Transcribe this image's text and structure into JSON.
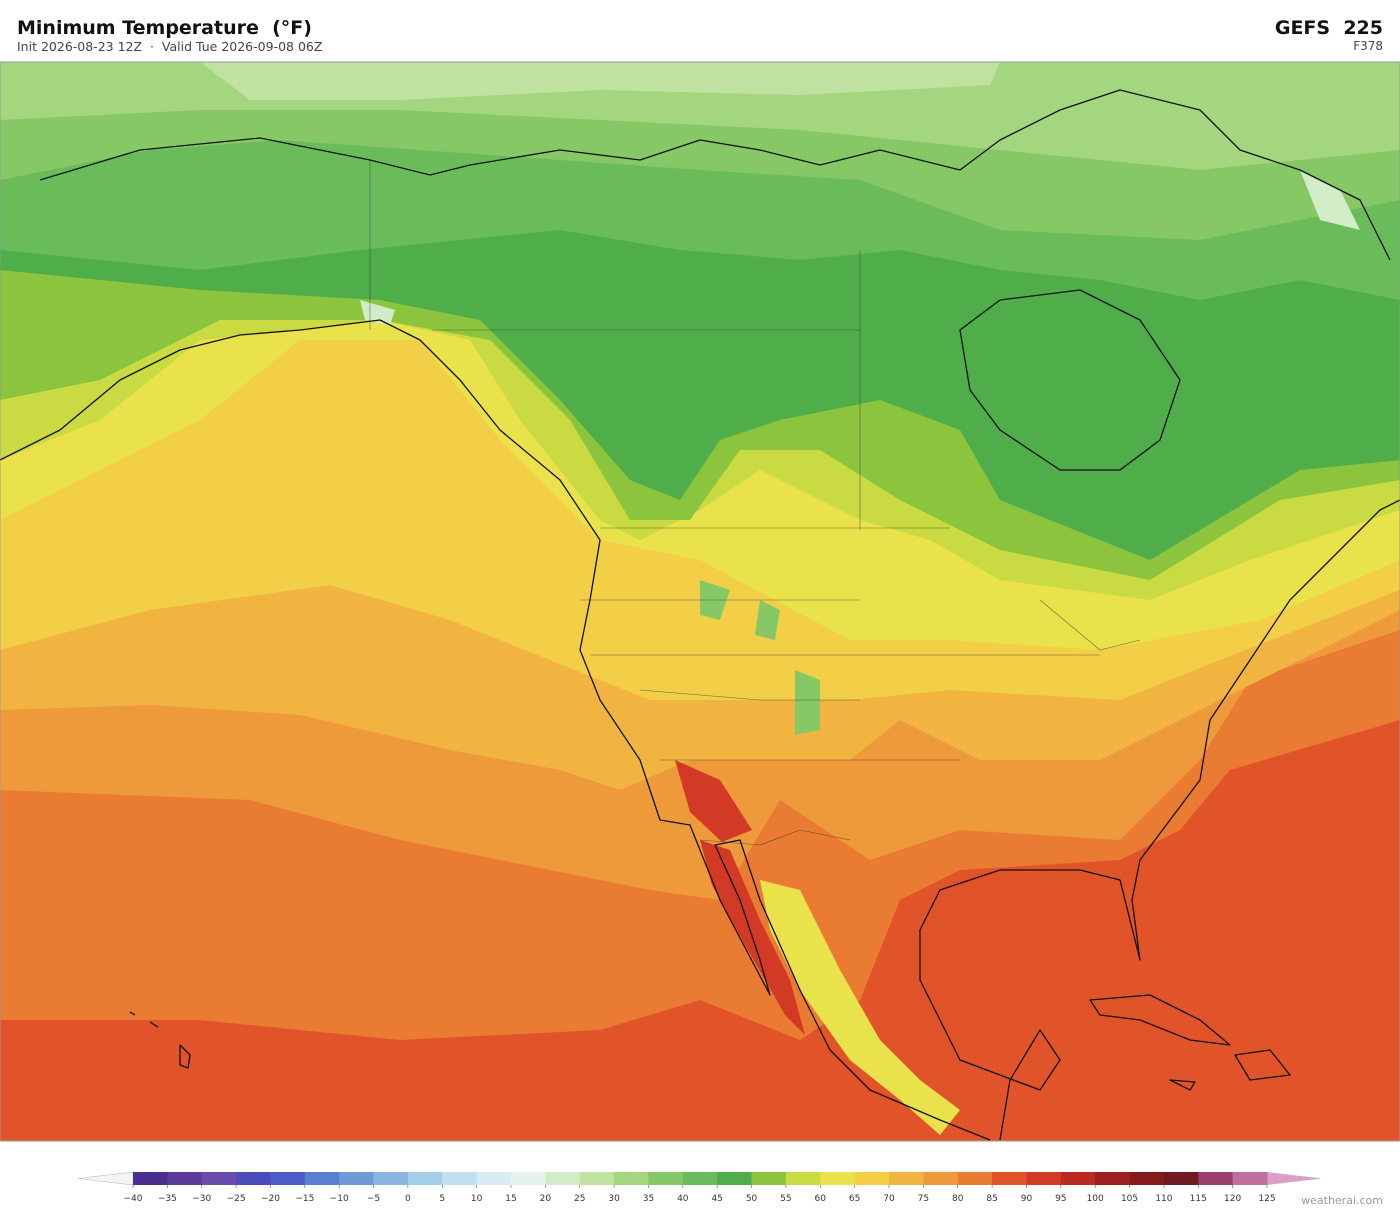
{
  "header": {
    "title": "Minimum Temperature  (°F)",
    "subtitle": "Init 2026-08-23 12Z  ·  Valid Tue 2026-09-08 06Z",
    "model": "GEFS  225",
    "forecast_hour": "F378"
  },
  "colorbar": {
    "ticks": [
      {
        "value": -40,
        "label": "−40"
      },
      {
        "value": -35,
        "label": "−35"
      },
      {
        "value": -30,
        "label": "−30"
      },
      {
        "value": -25,
        "label": "−25"
      },
      {
        "value": -20,
        "label": "−20"
      },
      {
        "value": -15,
        "label": "−15"
      },
      {
        "value": -10,
        "label": "−10"
      },
      {
        "value": -5,
        "label": "−5"
      },
      0,
      5,
      10,
      15,
      20,
      25,
      30,
      35,
      40,
      45,
      50,
      55,
      60,
      65,
      70,
      75,
      80,
      85,
      90,
      95,
      100,
      105,
      110,
      115,
      120,
      125
    ],
    "colors": [
      "#4b2d8f",
      "#5b3a9a",
      "#6a4aaa",
      "#4a4ab8",
      "#4a5cc8",
      "#5a7fd0",
      "#6f9ad8",
      "#8bb5e0",
      "#a6cde8",
      "#c0e0ef",
      "#d8ecf3",
      "#e6f3ec",
      "#d3ecc8",
      "#bfe2a0",
      "#a3d67f",
      "#86c865",
      "#6abc5a",
      "#4fad4a",
      "#8cc43e",
      "#c9da42",
      "#e9e24a",
      "#f3cf48",
      "#f1b441",
      "#ee9a3a",
      "#ea7b32",
      "#e1542a",
      "#d33a26",
      "#b82a22",
      "#9e1f1f",
      "#861a1d",
      "#6e1a20",
      "#9a3f6e",
      "#c06fa0"
    ],
    "under_color": "#f4f4f4",
    "over_color": "#d8a0c8"
  },
  "watermark": "weatherai.com"
}
